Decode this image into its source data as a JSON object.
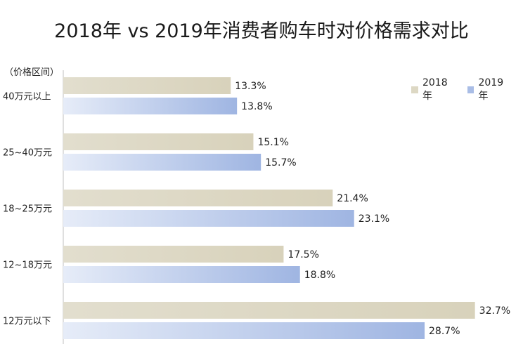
{
  "chart_data": {
    "type": "bar",
    "orientation": "horizontal",
    "title": "2018年 vs 2019年消费者购车时对价格需求对比",
    "unit_label": "（价格区间）",
    "categories": [
      "40万元以上",
      "25~40万元",
      "18~25万元",
      "12~18万元",
      "12万元以下"
    ],
    "series": [
      {
        "name": "2018年",
        "values": [
          13.3,
          15.1,
          21.4,
          17.5,
          32.7
        ],
        "color": "#ddd8c4"
      },
      {
        "name": "2019年",
        "values": [
          13.8,
          15.7,
          23.1,
          18.8,
          28.7
        ],
        "color": "#a9bde6"
      }
    ],
    "value_suffix": "%",
    "xlim": [
      0,
      33.5
    ],
    "grid": false,
    "legend_position": "top-right"
  }
}
